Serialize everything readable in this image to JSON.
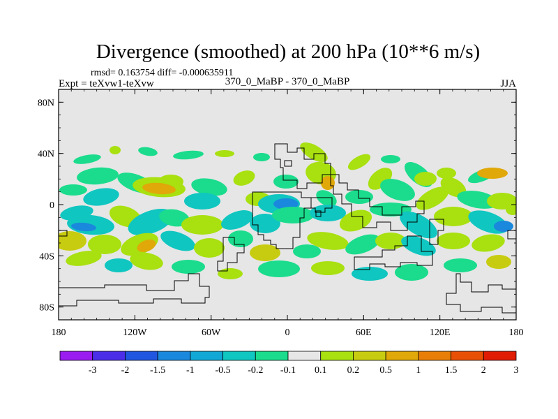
{
  "chart_data": {
    "type": "heatmap",
    "title": "Divergence (smoothed) at 200 hPa (10**6 m/s)",
    "stats_line": "rmsd= 0.163754 diff= -0.000635911",
    "expt_line": "Expt = teXvw1-teXvw",
    "center_label": "370_0_MaBP - 370_0_MaBP",
    "season": "JJA",
    "x_axis": {
      "range": [
        -180,
        180
      ],
      "ticks": [
        -180,
        -120,
        -60,
        0,
        60,
        120,
        180
      ],
      "tick_labels": [
        "180",
        "120W",
        "60W",
        "0",
        "60E",
        "120E",
        "180"
      ]
    },
    "y_axis": {
      "range": [
        -90,
        90
      ],
      "ticks": [
        80,
        40,
        0,
        -40,
        -80
      ],
      "tick_labels": [
        "80N",
        "40N",
        "0",
        "40S",
        "80S"
      ]
    },
    "colorbar": {
      "levels": [
        "-3",
        "-2",
        "-1.5",
        "-1",
        "-0.5",
        "-0.2",
        "-0.1",
        "0.1",
        "0.2",
        "0.5",
        "1",
        "1.5",
        "2",
        "3"
      ],
      "colors": [
        "#9a1cf0",
        "#4a2ee8",
        "#2056e0",
        "#1a88dc",
        "#12a8d6",
        "#10c6c0",
        "#1adc8c",
        "#e6e6e6",
        "#a8e010",
        "#c8cc10",
        "#e0a808",
        "#e87e08",
        "#e85006",
        "#e01c04"
      ]
    },
    "background_color": "#e6e6e6"
  }
}
